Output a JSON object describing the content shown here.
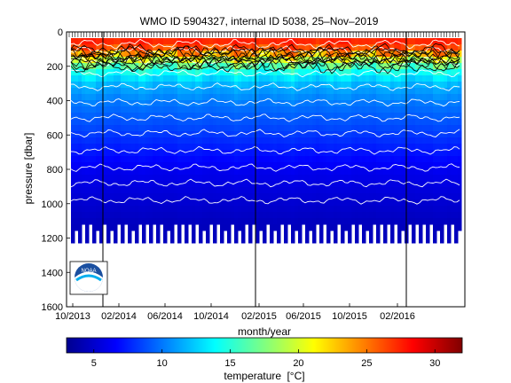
{
  "chart_data": {
    "type": "heatmap",
    "title": "WMO ID 5904327, internal ID 5038, 25–Nov–2019",
    "xlabel": "month/year",
    "ylabel": "pressure [dbar]",
    "x_tick_labels": [
      "10/2013",
      "02/2014",
      "06/2014",
      "10/2014",
      "02/2015",
      "06/2015",
      "10/2015",
      "02/2016"
    ],
    "y_ticks": [
      0,
      200,
      400,
      600,
      800,
      1000,
      1200,
      1400,
      1600
    ],
    "ylim": [
      1600,
      0
    ],
    "y_reversed": true,
    "colorbar": {
      "label": "temperature",
      "unit": "[°C]",
      "ticks": [
        5,
        10,
        15,
        20,
        25,
        30
      ],
      "range": [
        3,
        32
      ],
      "colors": [
        "#00008f",
        "#0000ff",
        "#0080ff",
        "#00ffff",
        "#80ff80",
        "#ffff00",
        "#ff8000",
        "#ff0000",
        "#800000"
      ]
    },
    "profile_temperature_vs_pressure": {
      "pressure": [
        0,
        60,
        100,
        130,
        160,
        200,
        250,
        300,
        400,
        500,
        600,
        800,
        1000,
        1100
      ],
      "temperature": [
        28,
        27,
        25,
        21,
        18,
        15,
        13,
        11.5,
        10,
        9,
        8,
        6,
        5,
        4.5
      ]
    },
    "data_max_pressure": 1200,
    "grid": false,
    "legend": "none"
  },
  "logo": {
    "name": "noaa-logo",
    "text": "NOAA"
  }
}
